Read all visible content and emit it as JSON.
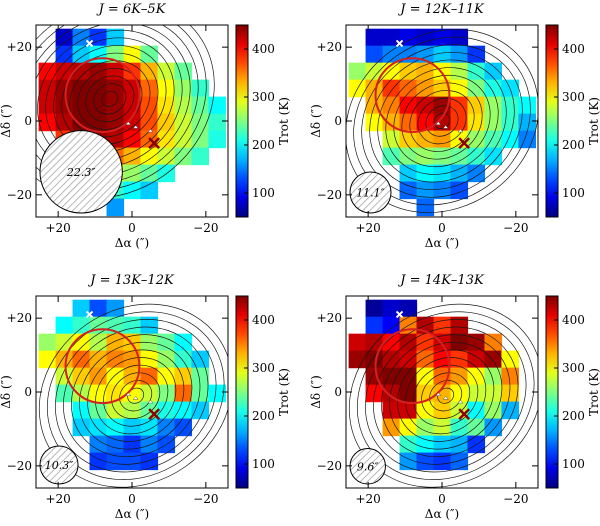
{
  "chart_data": [
    {
      "type": "heatmap",
      "title": "J = 6K–5K",
      "xlabel": "Δα (″)",
      "ylabel": "Δδ (″)",
      "colorbar_label": "Trot (K)",
      "xlim": [
        26,
        -26
      ],
      "ylim": [
        -26,
        26
      ],
      "xticks": [
        "+20",
        "0",
        "−20"
      ],
      "xtick_values": [
        20,
        0,
        -20
      ],
      "yticks": [
        "+20",
        "0",
        "−20"
      ],
      "ytick_values": [
        20,
        0,
        -20
      ],
      "clim": [
        50,
        450
      ],
      "colorbar_ticks": [
        "100",
        "200",
        "300",
        "400"
      ],
      "colorbar_tick_values": [
        100,
        200,
        300,
        400
      ],
      "beam_label": "22.3″",
      "beam_fwhm": 22.3,
      "pixel_size": 4.6,
      "white_cross": [
        11.5,
        21
      ],
      "dark_red_cross": [
        -6,
        -6
      ],
      "red_circle": {
        "center": [
          8,
          7
        ],
        "radius": 10
      },
      "markers": [
        [
          1,
          -1
        ],
        [
          -1,
          -2
        ],
        [
          -5,
          -3
        ]
      ],
      "contour_levels": 13,
      "contour_peak": [
        6,
        6
      ],
      "grid": [
        [
          "",
          "",
          "",
          "",
          "",
          "",
          "",
          "",
          "",
          "",
          ""
        ],
        [
          "",
          80,
          150,
          120,
          180,
          "",
          "",
          "",
          "",
          "",
          ""
        ],
        [
          "",
          120,
          180,
          200,
          250,
          300,
          240,
          "",
          "",
          "",
          ""
        ],
        [
          400,
          420,
          430,
          440,
          420,
          380,
          330,
          280,
          240,
          "",
          ""
        ],
        [
          420,
          440,
          450,
          450,
          440,
          420,
          360,
          300,
          260,
          220,
          ""
        ],
        [
          420,
          440,
          450,
          450,
          440,
          420,
          370,
          310,
          270,
          240,
          200
        ],
        [
          400,
          430,
          450,
          450,
          440,
          420,
          370,
          320,
          280,
          250,
          220
        ],
        [
          "",
          380,
          420,
          440,
          430,
          400,
          360,
          310,
          280,
          250,
          210
        ],
        [
          "",
          "",
          330,
          360,
          360,
          330,
          300,
          280,
          250,
          220,
          ""
        ],
        [
          "",
          "",
          250,
          260,
          280,
          260,
          240,
          210,
          "",
          "",
          ""
        ],
        [
          "",
          "",
          "",
          200,
          220,
          200,
          180,
          "",
          "",
          "",
          ""
        ],
        [
          "",
          "",
          "",
          "",
          160,
          "",
          "",
          "",
          "",
          "",
          ""
        ]
      ]
    },
    {
      "type": "heatmap",
      "title": "J = 12K–11K",
      "xlabel": "Δα (″)",
      "ylabel": "Δδ (″)",
      "colorbar_label": "Trot (K)",
      "xlim": [
        26,
        -26
      ],
      "ylim": [
        -26,
        26
      ],
      "xticks": [
        "+20",
        "0",
        "−20"
      ],
      "xtick_values": [
        20,
        0,
        -20
      ],
      "yticks": [
        "+20",
        "0",
        "−20"
      ],
      "ytick_values": [
        20,
        0,
        -20
      ],
      "clim": [
        50,
        450
      ],
      "colorbar_ticks": [
        "100",
        "200",
        "300",
        "400"
      ],
      "colorbar_tick_values": [
        100,
        200,
        300,
        400
      ],
      "beam_label": "11.1″",
      "beam_fwhm": 11.1,
      "pixel_size": 4.6,
      "white_cross": [
        11.5,
        21
      ],
      "dark_red_cross": [
        -6,
        -6
      ],
      "red_circle": {
        "center": [
          8,
          7
        ],
        "radius": 10
      },
      "markers": [
        [
          1,
          -1
        ],
        [
          -1,
          -2
        ],
        [
          -5,
          -3
        ]
      ],
      "contour_levels": 12,
      "contour_peak": [
        0,
        0
      ],
      "grid": [
        [
          "",
          "",
          "",
          "",
          "",
          "",
          "",
          "",
          "",
          "",
          ""
        ],
        [
          "",
          80,
          80,
          90,
          80,
          90,
          80,
          "",
          "",
          "",
          ""
        ],
        [
          "",
          130,
          150,
          150,
          160,
          180,
          160,
          120,
          "",
          "",
          ""
        ],
        [
          260,
          280,
          300,
          320,
          330,
          300,
          270,
          220,
          180,
          "",
          ""
        ],
        [
          300,
          330,
          380,
          360,
          340,
          320,
          300,
          250,
          210,
          190,
          ""
        ],
        [
          "",
          330,
          350,
          400,
          420,
          440,
          380,
          320,
          260,
          220,
          200
        ],
        [
          "",
          300,
          330,
          360,
          400,
          430,
          380,
          310,
          260,
          220,
          170
        ],
        [
          "",
          "",
          280,
          320,
          330,
          340,
          300,
          260,
          230,
          200,
          150
        ],
        [
          "",
          "",
          230,
          250,
          260,
          250,
          240,
          220,
          190,
          "",
          ""
        ],
        [
          "",
          "",
          "",
          180,
          200,
          190,
          170,
          150,
          "",
          "",
          ""
        ],
        [
          "",
          "",
          "",
          140,
          160,
          150,
          130,
          "",
          "",
          "",
          ""
        ],
        [
          "",
          "",
          "",
          "",
          140,
          "",
          "",
          "",
          "",
          "",
          ""
        ]
      ]
    },
    {
      "type": "heatmap",
      "title": "J = 13K–12K",
      "xlabel": "Δα (″)",
      "ylabel": "Δδ (″)",
      "colorbar_label": "Trot (K)",
      "xlim": [
        26,
        -26
      ],
      "ylim": [
        -26,
        26
      ],
      "xticks": [
        "+20",
        "0",
        "−20"
      ],
      "xtick_values": [
        20,
        0,
        -20
      ],
      "yticks": [
        "+20",
        "0",
        "−20"
      ],
      "ytick_values": [
        20,
        0,
        -20
      ],
      "clim": [
        50,
        450
      ],
      "colorbar_ticks": [
        "100",
        "200",
        "300",
        "400"
      ],
      "colorbar_tick_values": [
        100,
        200,
        300,
        400
      ],
      "beam_label": "10.3″",
      "beam_fwhm": 10.3,
      "pixel_size": 4.6,
      "white_cross": [
        11.5,
        21
      ],
      "dark_red_cross": [
        -6,
        -6
      ],
      "red_circle": {
        "center": [
          8,
          7
        ],
        "radius": 10
      },
      "markers": [
        [
          1,
          -1
        ],
        [
          -1,
          -2
        ],
        [
          -5,
          -3
        ]
      ],
      "contour_levels": 12,
      "contour_peak": [
        -1,
        -1
      ],
      "grid": [
        [
          "",
          "",
          "",
          "",
          "",
          "",
          "",
          "",
          "",
          "",
          ""
        ],
        [
          "",
          "",
          180,
          130,
          160,
          "",
          "",
          "",
          "",
          "",
          ""
        ],
        [
          "",
          200,
          220,
          240,
          230,
          220,
          180,
          "",
          "",
          "",
          ""
        ],
        [
          260,
          280,
          300,
          270,
          330,
          320,
          260,
          240,
          200,
          "",
          ""
        ],
        [
          300,
          330,
          360,
          330,
          350,
          340,
          300,
          260,
          220,
          180,
          ""
        ],
        [
          "",
          280,
          320,
          340,
          300,
          330,
          360,
          300,
          320,
          240,
          ""
        ],
        [
          "",
          230,
          270,
          300,
          310,
          300,
          280,
          250,
          360,
          240,
          200
        ],
        [
          "",
          "",
          200,
          240,
          280,
          270,
          240,
          210,
          200,
          180,
          ""
        ],
        [
          "",
          "",
          180,
          190,
          200,
          180,
          190,
          150,
          130,
          "",
          ""
        ],
        [
          "",
          "",
          "",
          150,
          140,
          120,
          150,
          130,
          "",
          "",
          ""
        ],
        [
          "",
          "",
          "",
          120,
          130,
          130,
          120,
          "",
          "",
          "",
          ""
        ],
        [
          "",
          "",
          "",
          "",
          "",
          "",
          "",
          "",
          "",
          "",
          ""
        ]
      ]
    },
    {
      "type": "heatmap",
      "title": "J = 14K–13K",
      "xlabel": "Δα (″)",
      "ylabel": "Δδ (″)",
      "colorbar_label": "Trot (K)",
      "xlim": [
        26,
        -26
      ],
      "ylim": [
        -26,
        26
      ],
      "xticks": [
        "+20",
        "0",
        "−20"
      ],
      "xtick_values": [
        20,
        0,
        -20
      ],
      "yticks": [
        "+20",
        "0",
        "−20"
      ],
      "ytick_values": [
        20,
        0,
        -20
      ],
      "clim": [
        50,
        450
      ],
      "colorbar_ticks": [
        "100",
        "200",
        "300",
        "400"
      ],
      "colorbar_tick_values": [
        100,
        200,
        300,
        400
      ],
      "beam_label": "9.6″",
      "beam_fwhm": 9.6,
      "pixel_size": 4.6,
      "white_cross": [
        11.5,
        21
      ],
      "dark_red_cross": [
        -6,
        -6
      ],
      "red_circle": {
        "center": [
          8,
          7
        ],
        "radius": 10
      },
      "markers": [
        [
          1,
          -1
        ],
        [
          -1,
          -2
        ],
        [
          -5,
          -3
        ]
      ],
      "contour_levels": 12,
      "contour_peak": [
        -1,
        -1
      ],
      "grid": [
        [
          "",
          "",
          "",
          "",
          "",
          "",
          "",
          "",
          "",
          "",
          ""
        ],
        [
          "",
          60,
          80,
          70,
          "",
          "",
          "",
          "",
          "",
          "",
          ""
        ],
        [
          "",
          120,
          100,
          350,
          430,
          380,
          430,
          "",
          "",
          "",
          ""
        ],
        [
          420,
          430,
          400,
          430,
          380,
          420,
          450,
          440,
          350,
          "",
          ""
        ],
        [
          440,
          450,
          430,
          420,
          360,
          400,
          380,
          420,
          440,
          300,
          ""
        ],
        [
          "",
          440,
          450,
          450,
          300,
          360,
          340,
          300,
          260,
          350,
          ""
        ],
        [
          "",
          400,
          430,
          450,
          320,
          330,
          300,
          280,
          280,
          320,
          ""
        ],
        [
          "",
          "",
          420,
          420,
          300,
          320,
          280,
          200,
          260,
          170,
          ""
        ],
        [
          "",
          "",
          340,
          300,
          260,
          280,
          220,
          240,
          160,
          "",
          ""
        ],
        [
          "",
          "",
          "",
          220,
          200,
          180,
          170,
          120,
          "",
          "",
          ""
        ],
        [
          "",
          "",
          "",
          160,
          130,
          120,
          140,
          "",
          "",
          "",
          ""
        ],
        [
          "",
          "",
          "",
          "",
          "",
          "",
          "",
          "",
          "",
          "",
          ""
        ]
      ]
    }
  ]
}
